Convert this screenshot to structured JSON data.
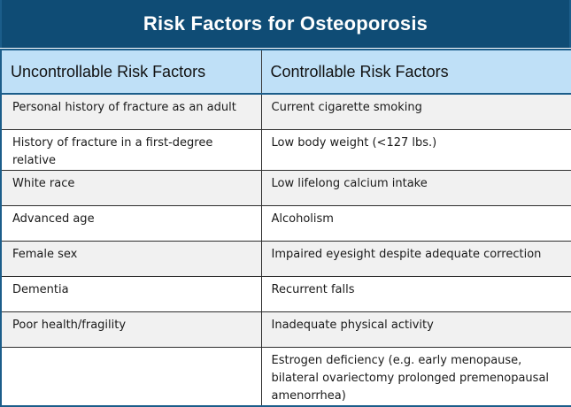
{
  "title": "Risk Factors for Osteoporosis",
  "headers": {
    "uncontrollable": "Uncontrollable  Risk Factors",
    "controllable": "Controllable Risk Factors"
  },
  "rows": [
    {
      "uncontrollable": "Personal history of fracture as an adult",
      "controllable": "Current cigarette smoking"
    },
    {
      "uncontrollable": "History of fracture in a first-degree relative",
      "controllable": "Low body weight (<127 lbs.)"
    },
    {
      "uncontrollable": "White race",
      "controllable": "Low lifelong calcium intake"
    },
    {
      "uncontrollable": "Advanced age",
      "controllable": "Alcoholism"
    },
    {
      "uncontrollable": "Female sex",
      "controllable": "Impaired eyesight despite adequate correction"
    },
    {
      "uncontrollable": "Dementia",
      "controllable": "Recurrent falls"
    },
    {
      "uncontrollable": "Poor health/fragility",
      "controllable": "Inadequate physical activity"
    },
    {
      "uncontrollable": "",
      "controllable": "Estrogen deficiency (e.g. early menopause, bilateral ovariectomy prolonged premenopausal amenorrhea)"
    }
  ],
  "colors": {
    "title_bar": "#0f4c75",
    "header_row": "#bfe0f7",
    "shaded_row": "#f1f1f1"
  }
}
